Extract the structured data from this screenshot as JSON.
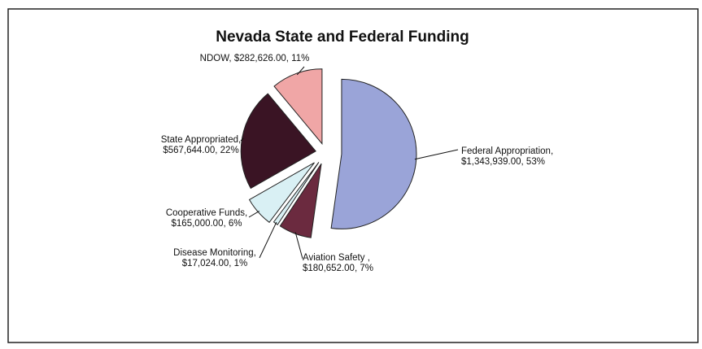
{
  "chart_data": {
    "type": "pie",
    "title": "Nevada State and Federal Funding",
    "slices": [
      {
        "name": "Federal Appropriation",
        "value": 1343939.0,
        "value_label": "$1,343,939.00",
        "percent_label": "53%",
        "color": "#9aa4d8",
        "label_lines": [
          "Federal Appropriation,",
          "$1,343,939.00, 53%"
        ]
      },
      {
        "name": "Aviation Safety",
        "value": 180652.0,
        "value_label": "$180,652.00",
        "percent_label": "7%",
        "color": "#6b2a3f",
        "label_lines": [
          "Aviation Safety ,",
          "$180,652.00, 7%"
        ]
      },
      {
        "name": "Disease Monitoring",
        "value": 17024.0,
        "value_label": "$17,024.00",
        "percent_label": "1%",
        "color": "#d9f0f4",
        "label_lines": [
          "Disease Monitoring,",
          "$17,024.00, 1%"
        ]
      },
      {
        "name": "Cooperative Funds",
        "value": 165000.0,
        "value_label": "$165,000.00",
        "percent_label": "6%",
        "color": "#d9f0f4",
        "label_lines": [
          "Cooperative Funds,",
          "$165,000.00, 6%"
        ]
      },
      {
        "name": "State Appropriated",
        "value": 567644.0,
        "value_label": "$567,644.00",
        "percent_label": "22%",
        "color": "#3a1424",
        "label_lines": [
          "State Appropriated,",
          "$567,644.00, 22%"
        ]
      },
      {
        "name": "NDOW",
        "value": 282626.0,
        "value_label": "$282,626.00",
        "percent_label": "11%",
        "color": "#f0a6a6",
        "label_lines": [
          "NDOW, $282,626.00, 11%"
        ]
      }
    ],
    "start_angle_deg": 0,
    "direction": "clockwise",
    "exploded": true,
    "legend": "none",
    "grid": false
  }
}
